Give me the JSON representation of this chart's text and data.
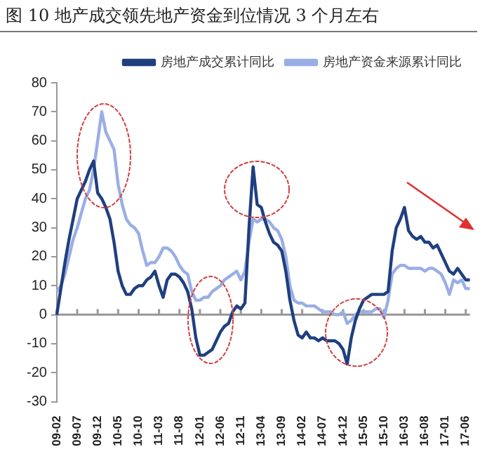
{
  "chart_data": {
    "type": "line",
    "title": "图 10  地产成交领先地产资金到位情况 3 个月左右",
    "categories": [
      "09-02",
      null,
      null,
      null,
      null,
      "09-07",
      null,
      null,
      null,
      null,
      "09-12",
      null,
      null,
      null,
      null,
      "10-05",
      null,
      null,
      null,
      null,
      "10-10",
      null,
      null,
      null,
      null,
      "11-03",
      null,
      null,
      null,
      null,
      "11-08",
      null,
      null,
      null,
      null,
      "12-01",
      null,
      null,
      null,
      null,
      "12-06",
      null,
      null,
      null,
      null,
      "12-11",
      null,
      null,
      null,
      null,
      "13-04",
      null,
      null,
      null,
      null,
      "13-09",
      null,
      null,
      null,
      null,
      "14-02",
      null,
      null,
      null,
      null,
      "14-07",
      null,
      null,
      null,
      null,
      "14-12",
      null,
      null,
      null,
      null,
      "15-05",
      null,
      null,
      null,
      null,
      "15-10",
      null,
      null,
      null,
      null,
      "16-03",
      null,
      null,
      null,
      null,
      "16-08",
      null,
      null,
      null,
      null,
      "17-01",
      null,
      null,
      null,
      null,
      "17-06",
      null
    ],
    "series": [
      {
        "name": "房地产成交累计同比",
        "color": "#1f3f7f",
        "values": [
          0,
          9,
          18,
          26,
          33,
          40,
          43,
          46,
          50,
          53,
          42,
          40,
          37,
          33,
          25,
          15,
          10,
          7,
          7,
          9,
          10,
          10,
          12,
          13,
          15,
          10,
          6,
          12,
          14,
          14,
          13,
          11,
          8,
          2,
          -8,
          -14,
          -14,
          -13,
          -12,
          -9,
          -6,
          -4,
          -3,
          1,
          3,
          2,
          4,
          30,
          51,
          38,
          37,
          32,
          28,
          25,
          24,
          22,
          15,
          5,
          -2,
          -7,
          -8,
          -6,
          -8,
          -8,
          -9,
          -8,
          -9,
          -9,
          -9,
          -10,
          -12,
          -17,
          -8,
          -2,
          2,
          5,
          6,
          7,
          7,
          7,
          7,
          8,
          22,
          30,
          33,
          37,
          29,
          27,
          26,
          27,
          25,
          25,
          23,
          24,
          21,
          18,
          15,
          14,
          16,
          14,
          12,
          12
        ]
      },
      {
        "name": "房地产资金来源累计同比",
        "color": "#9aaee6",
        "values": [
          8,
          10,
          14,
          20,
          26,
          30,
          35,
          40,
          43,
          50,
          60,
          70,
          63,
          60,
          57,
          45,
          38,
          33,
          31,
          30,
          28,
          22,
          17,
          18,
          18,
          20,
          23,
          23,
          22,
          20,
          17,
          15,
          14,
          8,
          5,
          5,
          6,
          6,
          8,
          9,
          10,
          12,
          13,
          14,
          15,
          12,
          15,
          25,
          33,
          32,
          33,
          33,
          32,
          30,
          29,
          26,
          20,
          10,
          5,
          4,
          4,
          3,
          3,
          3,
          2,
          1,
          1,
          1,
          0,
          0,
          1,
          -3,
          -2,
          0,
          1,
          1,
          1,
          1,
          2,
          2,
          -1,
          5,
          14,
          16,
          17,
          17,
          16,
          16,
          16,
          16,
          15,
          16,
          16,
          15,
          14,
          11,
          7,
          12,
          11,
          12,
          9,
          9
        ]
      }
    ],
    "ylim": [
      -30,
      80
    ],
    "yticks": [
      -30,
      -20,
      -10,
      0,
      10,
      20,
      30,
      40,
      50,
      60,
      70,
      80
    ],
    "ref_lines": [
      {
        "axis": "y",
        "value": 0,
        "color": "#999999"
      }
    ],
    "grid": false,
    "legend": "top right",
    "marker": "none",
    "line_style": "solid"
  }
}
